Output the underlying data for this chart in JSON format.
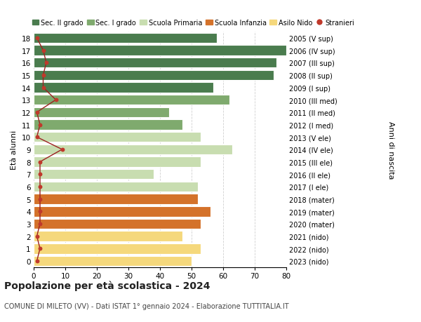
{
  "ages": [
    18,
    17,
    16,
    15,
    14,
    13,
    12,
    11,
    10,
    9,
    8,
    7,
    6,
    5,
    4,
    3,
    2,
    1,
    0
  ],
  "right_labels": [
    "2005 (V sup)",
    "2006 (IV sup)",
    "2007 (III sup)",
    "2008 (II sup)",
    "2009 (I sup)",
    "2010 (III med)",
    "2011 (II med)",
    "2012 (I med)",
    "2013 (V ele)",
    "2014 (IV ele)",
    "2015 (III ele)",
    "2016 (II ele)",
    "2017 (I ele)",
    "2018 (mater)",
    "2019 (mater)",
    "2020 (mater)",
    "2021 (nido)",
    "2022 (nido)",
    "2023 (nido)"
  ],
  "bar_values": [
    58,
    80,
    77,
    76,
    57,
    62,
    43,
    47,
    53,
    63,
    53,
    38,
    52,
    52,
    56,
    53,
    47,
    53,
    50
  ],
  "bar_colors": [
    "#4a7c4e",
    "#4a7c4e",
    "#4a7c4e",
    "#4a7c4e",
    "#4a7c4e",
    "#7faa6e",
    "#7faa6e",
    "#7faa6e",
    "#c8ddb0",
    "#c8ddb0",
    "#c8ddb0",
    "#c8ddb0",
    "#c8ddb0",
    "#d4722a",
    "#d4722a",
    "#d4722a",
    "#f5d87c",
    "#f5d87c",
    "#f5d87c"
  ],
  "stranieri_values": [
    1,
    3,
    4,
    3,
    3,
    7,
    1,
    2,
    1,
    9,
    2,
    2,
    2,
    2,
    2,
    2,
    1,
    2,
    1
  ],
  "legend_labels": [
    "Sec. II grado",
    "Sec. I grado",
    "Scuola Primaria",
    "Scuola Infanzia",
    "Asilo Nido",
    "Stranieri"
  ],
  "legend_colors": [
    "#4a7c4e",
    "#7faa6e",
    "#c8ddb0",
    "#d4722a",
    "#f5d87c",
    "#c0392b"
  ],
  "ylabel_left": "Età alunni",
  "ylabel_right": "Anni di nascita",
  "title": "Popolazione per età scolastica - 2024",
  "subtitle": "COMUNE DI MILETO (VV) - Dati ISTAT 1° gennaio 2024 - Elaborazione TUTTITALIA.IT",
  "xlim": [
    0,
    80
  ],
  "xticks": [
    0,
    10,
    20,
    30,
    40,
    50,
    60,
    70,
    80
  ],
  "bg_color": "#ffffff",
  "grid_color": "#d0d0d0"
}
